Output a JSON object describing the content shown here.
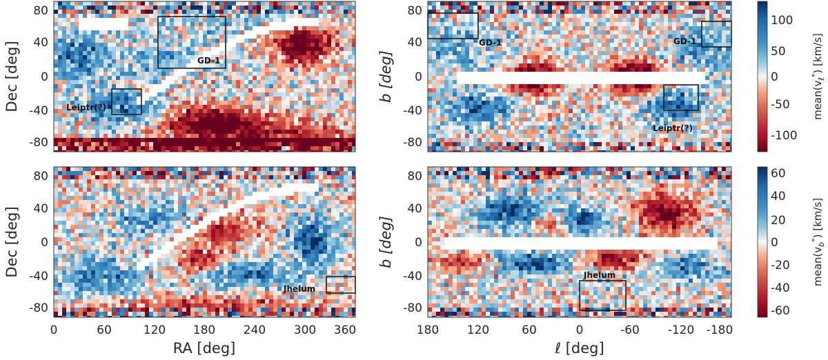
{
  "chart_data": [
    {
      "type": "heatmap",
      "panel": "top-left",
      "xlabel": "",
      "ylabel": "Dec [deg]",
      "xlim": [
        0,
        360
      ],
      "ylim": [
        -90,
        90
      ],
      "xticks": [
        "0",
        "60",
        "120",
        "180",
        "240",
        "300",
        "360"
      ],
      "yticks": [
        "80",
        "40",
        "0",
        "-40",
        "-80"
      ],
      "colorbar": "mean(v_l*) [km/s]",
      "boxes": [
        {
          "label": "GD-1",
          "x": [
            125,
            205
          ],
          "y": [
            10,
            70
          ]
        },
        {
          "label": "Leiptr(?)",
          "x": [
            70,
            105
          ],
          "y": [
            -45,
            -15
          ]
        }
      ]
    },
    {
      "type": "heatmap",
      "panel": "top-right",
      "xlabel": "",
      "ylabel": "b [deg]",
      "xlim": [
        180,
        -180
      ],
      "ylim": [
        -90,
        90
      ],
      "xticks": [
        "180",
        "120",
        "60",
        "0",
        "-60",
        "-120",
        "-180"
      ],
      "yticks": [
        "80",
        "40",
        "0",
        "-40",
        "-80"
      ],
      "colorbar": "mean(v_l*) [km/s]",
      "colorbar_range": [
        -120,
        120
      ],
      "colorbar_ticks": [
        "100",
        "50",
        "0",
        "-50",
        "-100"
      ],
      "boxes": [
        {
          "label": "GD-1",
          "x": [
            180,
            120
          ],
          "y": [
            45,
            75
          ]
        },
        {
          "label": "GD-1",
          "x": [
            -145,
            -180
          ],
          "y": [
            35,
            65
          ]
        },
        {
          "label": "Leiptr(?)",
          "x": [
            -100,
            -145
          ],
          "y": [
            -40,
            -10
          ]
        }
      ]
    },
    {
      "type": "heatmap",
      "panel": "bottom-left",
      "xlabel": "RA [deg]",
      "ylabel": "Dec [deg]",
      "xlim": [
        0,
        360
      ],
      "ylim": [
        -90,
        90
      ],
      "xticks": [
        "0",
        "60",
        "120",
        "180",
        "240",
        "300",
        "360"
      ],
      "yticks": [
        "80",
        "40",
        "0",
        "-40",
        "-80"
      ],
      "colorbar": "mean(v_b*) [km/s]",
      "boxes": [
        {
          "label": "Jhelum",
          "x": [
            322,
            360
          ],
          "y": [
            -60,
            -40
          ]
        }
      ]
    },
    {
      "type": "heatmap",
      "panel": "bottom-right",
      "xlabel": "ℓ [deg]",
      "ylabel": "b [deg]",
      "xlim": [
        180,
        -180
      ],
      "ylim": [
        -90,
        90
      ],
      "xticks": [
        "180",
        "120",
        "60",
        "0",
        "-60",
        "-120",
        "-180"
      ],
      "yticks": [
        "80",
        "40",
        "0",
        "-40",
        "-80"
      ],
      "colorbar": "mean(v_b*) [km/s]",
      "colorbar_range": [
        -60,
        60
      ],
      "colorbar_ticks": [
        "60",
        "40",
        "20",
        "0",
        "-20",
        "-40",
        "-60"
      ],
      "boxes": [
        {
          "label": "Jhelum",
          "x": [
            0,
            -55
          ],
          "y": [
            -80,
            -45
          ]
        }
      ]
    }
  ],
  "labels": {
    "dec": "Dec [deg]",
    "b": "b [deg]",
    "ra": "RA [deg]",
    "l": "ℓ [deg]",
    "cb_top": "mean(v",
    "cb_top_sub": "ℓ",
    "cb_bot_sub": "b",
    "cb_sup": "*",
    "cb_tail": ") [km/s]",
    "gd1": "GD-1",
    "leiptr": "Leiptr(?)",
    "jhelum": "Jhelum"
  },
  "colors": {
    "blue": "#053061",
    "red": "#67001f",
    "mid": "#f7f7f7"
  }
}
